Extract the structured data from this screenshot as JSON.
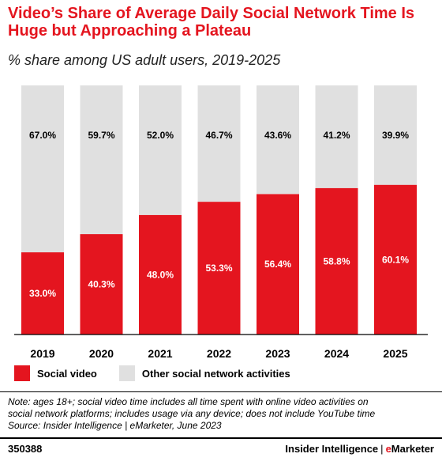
{
  "title": "Video’s Share of Average Daily Social Network Time Is Huge but Approaching a Plateau",
  "subtitle": "% share among US adult users, 2019-2025",
  "colors": {
    "social_video": "#e4151f",
    "other": "#e0e0e0",
    "accent": "#e4151f"
  },
  "chart_data": {
    "type": "bar",
    "stacked": true,
    "categories": [
      "2019",
      "2020",
      "2021",
      "2022",
      "2023",
      "2024",
      "2025"
    ],
    "series": [
      {
        "name": "Social video",
        "values": [
          33.0,
          40.3,
          48.0,
          53.3,
          56.4,
          58.8,
          60.1
        ],
        "labels": [
          "33.0%",
          "40.3%",
          "48.0%",
          "53.3%",
          "56.4%",
          "58.8%",
          "60.1%"
        ]
      },
      {
        "name": "Other social network activities",
        "values": [
          67.0,
          59.7,
          52.0,
          46.7,
          43.6,
          41.2,
          39.9
        ],
        "labels": [
          "67.0%",
          "59.7%",
          "52.0%",
          "46.7%",
          "43.6%",
          "41.2%",
          "39.9%"
        ]
      }
    ],
    "ylim": [
      0,
      100
    ],
    "legend_position": "bottom-left"
  },
  "legend": {
    "social_video": "Social video",
    "other": "Other social network activities"
  },
  "note_lines": [
    "Note: ages 18+; social video time includes all time spent with online video activities on",
    "social network platforms; includes usage via any device; does not include YouTube time",
    "Source: Insider Intelligence | eMarketer, June 2023"
  ],
  "footer": {
    "chart_id": "350388",
    "brand_part1": "Insider Intelligence",
    "separator": "|",
    "brand_e": "e",
    "brand_part2": "Marketer"
  }
}
